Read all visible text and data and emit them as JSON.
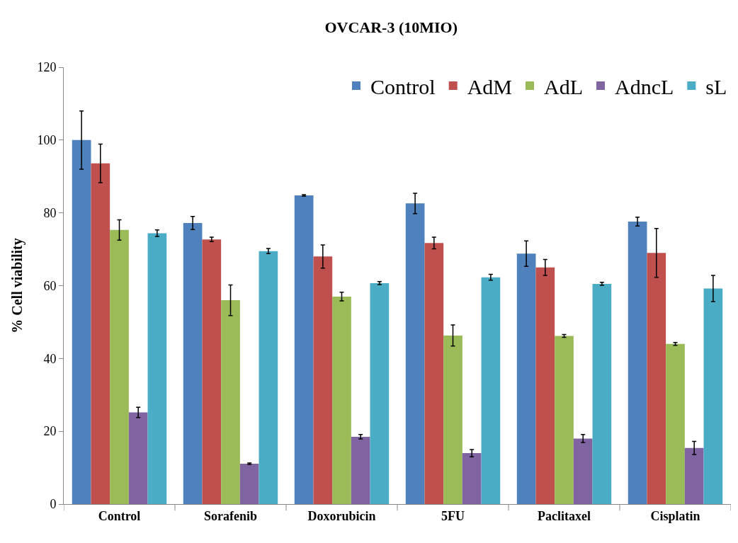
{
  "chart_data": {
    "type": "bar",
    "title": "OVCAR-3 (10MIO)",
    "ylabel": "% Cell viability",
    "categories": [
      "Control",
      "Sorafenib",
      "Doxorubicin",
      "5FU",
      "Paclitaxel",
      "Cisplatin"
    ],
    "series": [
      {
        "name": "Control",
        "color": "#4f81bd",
        "values": [
          100,
          77.2,
          84.8,
          82.6,
          68.8,
          77.6
        ],
        "errors": [
          8,
          1.8,
          0.2,
          2.8,
          3.5,
          1.2
        ]
      },
      {
        "name": "AdM",
        "color": "#c0504d",
        "values": [
          93.6,
          72.7,
          68,
          71.7,
          65,
          69
        ],
        "errors": [
          5.3,
          0.6,
          3.2,
          1.6,
          2.2,
          6.7
        ]
      },
      {
        "name": "AdL",
        "color": "#9bbb59",
        "values": [
          75.3,
          56,
          57,
          46.3,
          46.2,
          44
        ],
        "errors": [
          2.8,
          4.2,
          1.2,
          2.9,
          0.4,
          0.4
        ]
      },
      {
        "name": "AdncL",
        "color": "#8064a2",
        "values": [
          25.2,
          11.1,
          18.5,
          14,
          18,
          15.4
        ],
        "errors": [
          1.4,
          0.2,
          0.6,
          1,
          1.1,
          1.8
        ]
      },
      {
        "name": "sL",
        "color": "#4bacc6",
        "values": [
          74.4,
          69.5,
          60.7,
          62.3,
          60.5,
          59.2
        ],
        "errors": [
          0.9,
          0.7,
          0.4,
          0.8,
          0.4,
          3.6
        ]
      }
    ],
    "ylim": [
      0,
      120
    ],
    "yticks": [
      0,
      20,
      40,
      60,
      80,
      100,
      120
    ],
    "legend": "top right"
  }
}
